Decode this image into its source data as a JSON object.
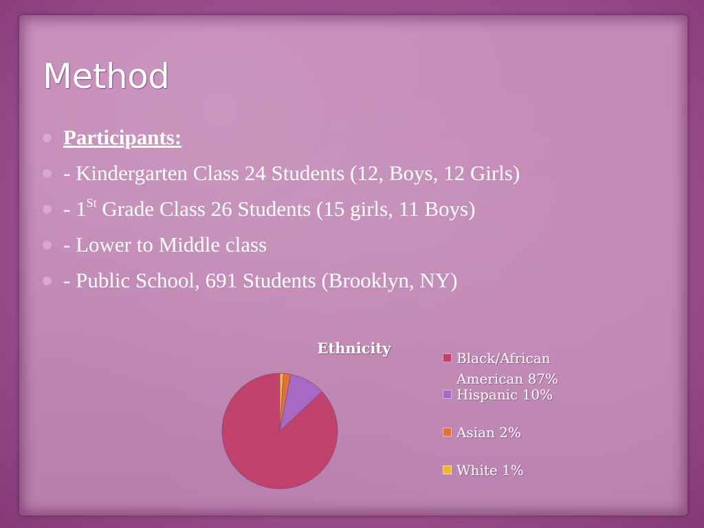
{
  "slide": {
    "title": "Method",
    "bullets": [
      {
        "label": "Participants:",
        "is_heading": true
      },
      {
        "text": "- Kindergarten Class 24 Students (12, Boys, 12 Girls)"
      },
      {
        "text_pre": "- 1",
        "superscript": "St",
        "text_post": " Grade Class 26 Students (15 girls, 11 Boys)"
      },
      {
        "text": "- Lower to Middle class"
      },
      {
        "text": "- Public School, 691 Students (Brooklyn, NY)"
      }
    ]
  },
  "chart_data": {
    "type": "pie",
    "title": "Ethnicity",
    "categories": [
      "Black/African American",
      "Hispanic",
      "Asian",
      "White"
    ],
    "values": [
      87,
      10,
      2,
      1
    ],
    "legend_labels": [
      "Black/African American 87%",
      "Hispanic 10%",
      "Asian 2%",
      "White 1%"
    ],
    "colors": [
      "#c0416c",
      "#a869c4",
      "#e0733a",
      "#f2b731"
    ],
    "legend_position": "right"
  }
}
